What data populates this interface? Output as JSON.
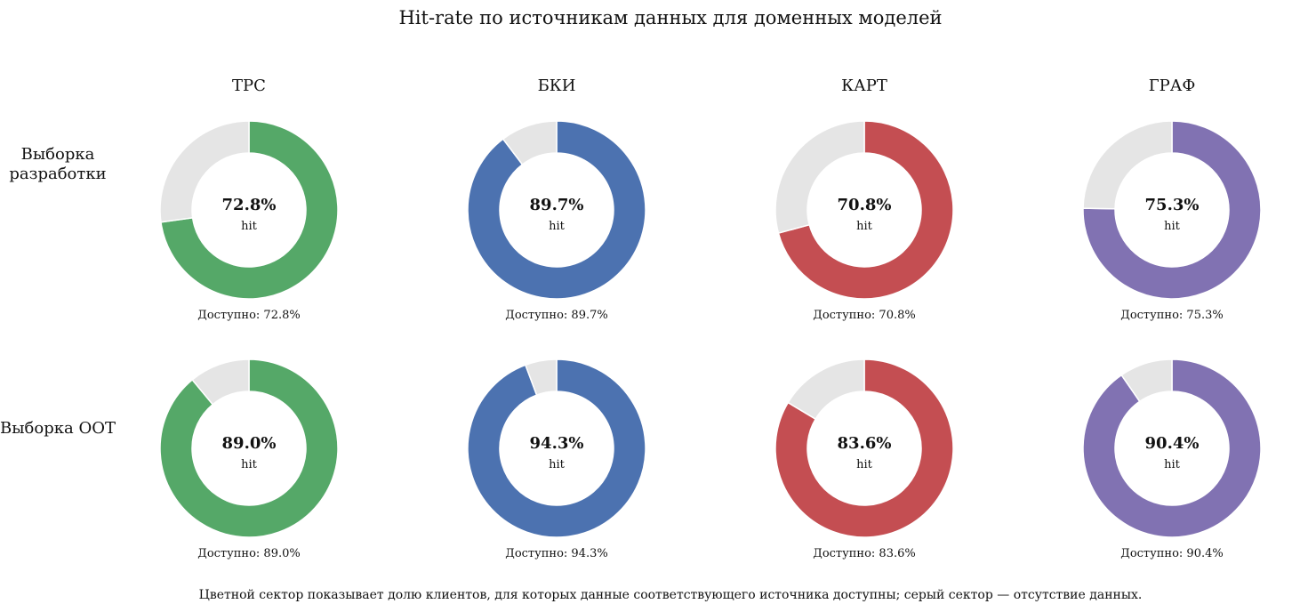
{
  "title": "Hit-rate по источникам данных для доменных моделей",
  "footnote": "Цветной сектор показывает долю клиентов, для которых данные соответствующего источника доступны; серый сектор — отсутствие данных.",
  "columns": [
    "ТРС",
    "БКИ",
    "КАРТ",
    "ГРАФ"
  ],
  "rows": [
    "Выборка разработки",
    "Выборка OOT"
  ],
  "center_sublabel": "hit",
  "available_label": "Доступно",
  "colors": {
    "ТРС": "#55a868",
    "БКИ": "#4c72b0",
    "КАРТ": "#c44e52",
    "ГРАФ": "#8172b2",
    "missing": "#e5e5e5"
  },
  "chart_data": [
    {
      "type": "pie",
      "donut": true,
      "source": "ТРС",
      "sample": "Выборка разработки",
      "hit_pct": 72.8,
      "center_text": "72.8%",
      "caption": "Доступно: 72.8%"
    },
    {
      "type": "pie",
      "donut": true,
      "source": "БКИ",
      "sample": "Выборка разработки",
      "hit_pct": 89.7,
      "center_text": "89.7%",
      "caption": "Доступно: 89.7%"
    },
    {
      "type": "pie",
      "donut": true,
      "source": "КАРТ",
      "sample": "Выборка разработки",
      "hit_pct": 70.8,
      "center_text": "70.8%",
      "caption": "Доступно: 70.8%"
    },
    {
      "type": "pie",
      "donut": true,
      "source": "ГРАФ",
      "sample": "Выборка разработки",
      "hit_pct": 75.3,
      "center_text": "75.3%",
      "caption": "Доступно: 75.3%"
    },
    {
      "type": "pie",
      "donut": true,
      "source": "ТРС",
      "sample": "Выборка OOT",
      "hit_pct": 89.0,
      "center_text": "89.0%",
      "caption": "Доступно: 89.0%"
    },
    {
      "type": "pie",
      "donut": true,
      "source": "БКИ",
      "sample": "Выборка OOT",
      "hit_pct": 94.3,
      "center_text": "94.3%",
      "caption": "Доступно: 94.3%"
    },
    {
      "type": "pie",
      "donut": true,
      "source": "КАРТ",
      "sample": "Выборка OOT",
      "hit_pct": 83.6,
      "center_text": "83.6%",
      "caption": "Доступно: 83.6%"
    },
    {
      "type": "pie",
      "donut": true,
      "source": "ГРАФ",
      "sample": "Выборка OOT",
      "hit_pct": 90.4,
      "center_text": "90.4%",
      "caption": "Доступно: 90.4%"
    }
  ]
}
